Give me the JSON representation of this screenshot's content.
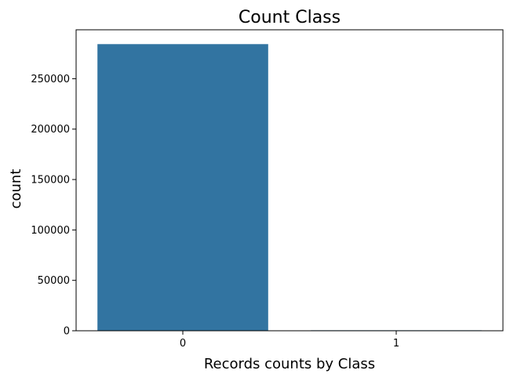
{
  "chart_data": {
    "type": "bar",
    "title": "Count Class",
    "xlabel": "Records counts by Class",
    "ylabel": "count",
    "categories": [
      "0",
      "1"
    ],
    "values": [
      284315,
      492
    ],
    "ylim": [
      0,
      298531
    ],
    "yticks": [
      0,
      50000,
      100000,
      150000,
      200000,
      250000
    ],
    "ytick_labels": [
      "0",
      "50000",
      "100000",
      "150000",
      "200000",
      "250000"
    ],
    "bar_color": "#3274a1",
    "grid": false,
    "legend": "none"
  }
}
